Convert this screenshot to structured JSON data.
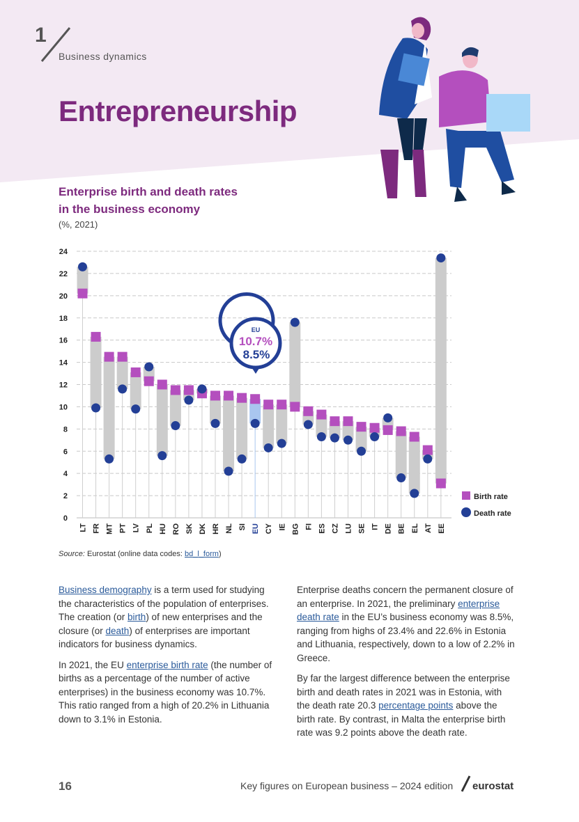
{
  "header": {
    "chapter_number": "1",
    "chapter_name": "Business dynamics",
    "title": "Entrepreneurship"
  },
  "chart_header": {
    "title_line1": "Enterprise birth and death rates",
    "title_line2": "in the business economy",
    "unit": "(%, 2021)"
  },
  "chart_data": {
    "type": "range-dot",
    "title": "Enterprise birth and death rates in the business economy",
    "unit": "(%, 2021)",
    "ylim": [
      0,
      24
    ],
    "yticks": [
      0,
      2,
      4,
      6,
      8,
      10,
      12,
      14,
      16,
      18,
      20,
      22,
      24
    ],
    "grid": true,
    "legend_position": "bottom-right",
    "categories": [
      "LT",
      "FR",
      "MT",
      "PT",
      "LV",
      "PL",
      "HU",
      "RO",
      "SK",
      "DK",
      "HR",
      "NL",
      "SI",
      "EU",
      "CY",
      "IE",
      "BG",
      "FI",
      "ES",
      "CZ",
      "LU",
      "SE",
      "IT",
      "DE",
      "BE",
      "EL",
      "AT",
      "EE"
    ],
    "series": [
      {
        "name": "Birth rate",
        "color": "#b44fbe",
        "values": [
          20.2,
          16.3,
          14.5,
          14.5,
          13.1,
          12.3,
          12.0,
          11.5,
          11.5,
          11.2,
          11.0,
          11.0,
          10.8,
          10.7,
          10.2,
          10.2,
          10.0,
          9.6,
          9.3,
          8.7,
          8.7,
          8.2,
          8.1,
          7.9,
          7.8,
          7.3,
          6.1,
          3.1
        ]
      },
      {
        "name": "Death rate",
        "color": "#233f96",
        "values": [
          22.6,
          9.9,
          5.3,
          11.6,
          9.8,
          13.6,
          5.6,
          8.3,
          10.6,
          11.6,
          8.5,
          4.2,
          5.3,
          8.5,
          6.3,
          6.7,
          17.6,
          8.4,
          7.3,
          7.2,
          7.0,
          6.0,
          7.3,
          9.0,
          3.6,
          2.2,
          5.3,
          23.4
        ]
      }
    ],
    "highlight": {
      "category": "EU",
      "label": "EU",
      "birth_text": "10.7%",
      "death_text": "8.5%"
    }
  },
  "legend": {
    "birth_label": "Birth rate",
    "death_label": "Death rate"
  },
  "source": {
    "label": "Source:",
    "text": " Eurostat (online data codes: ",
    "code": "bd_l_form",
    "end": ")"
  },
  "body": {
    "p1_link": "Business demography",
    "p1_a": " is a term used for studying the characteristics of the population of enterprises. The creation (or ",
    "p1_link2": "birth",
    "p1_b": ") of new enterprises and the closure (or ",
    "p1_link3": "death",
    "p1_c": ") of enterprises are important indicators for business dynamics.",
    "p2_a": "In 2021, the EU ",
    "p2_link": "enterprise birth rate",
    "p2_b": " (the number of births as a percentage of the number of active enterprises) in the business economy was 10.7%. This ratio ranged from a high of 20.2% in Lithuania down to 3.1% in Estonia.",
    "p3_a": "Enterprise deaths concern the permanent closure of an enterprise. In 2021, the preliminary ",
    "p3_link": "enterprise death rate",
    "p3_b": " in the EU’s business economy was 8.5%, ranging from highs of 23.4% and 22.6% in Estonia and Lithuania, respectively, down to a low of 2.2% in Greece.",
    "p4_a": "By far the largest difference between the enterprise birth and death rates in 2021 was in Estonia, with the death rate 20.3 ",
    "p4_link": "percentage points",
    "p4_b": " above the birth rate. By contrast, in Malta the enterprise birth rate was 9.2 points above the death rate."
  },
  "footer": {
    "page_number": "16",
    "publication": "Key figures on European business – 2024 edition",
    "logo_text": "eurostat"
  },
  "colors": {
    "band": "#f3e9f3",
    "title": "#7d2a7e",
    "birth": "#b44fbe",
    "death": "#233f96",
    "range": "#cccccc",
    "eu_range": "#a9c6ef"
  }
}
